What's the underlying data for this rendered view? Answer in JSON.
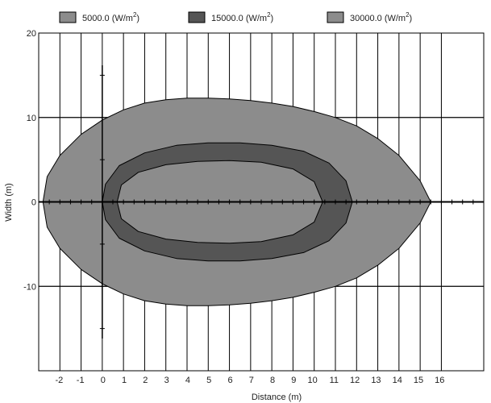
{
  "chart_data": {
    "type": "area",
    "xlabel": "Distance (m)",
    "ylabel": "Width (m)",
    "xlim": [
      -3,
      18
    ],
    "ylim": [
      -20,
      20
    ],
    "x_ticks": [
      -2,
      -1,
      0,
      1,
      2,
      3,
      4,
      5,
      6,
      7,
      8,
      9,
      10,
      11,
      12,
      13,
      14,
      15,
      16
    ],
    "x_tick_labels": [
      "-2",
      "-1",
      "0",
      "1",
      "2",
      "3",
      "4",
      "5",
      "6",
      "7",
      "8",
      "9",
      "10",
      "11",
      "12",
      "13",
      "14",
      "15",
      "16"
    ],
    "y_ticks": [
      -10,
      0,
      10,
      20
    ],
    "y_tick_labels": [
      "-10",
      "0",
      "10",
      "20"
    ],
    "grid": true,
    "legend_position": "top",
    "series": [
      {
        "name": "5000.0",
        "unit": "W/m",
        "unit_superscript": "2",
        "color": "#8c8c8c",
        "points": [
          [
            -2.8,
            0
          ],
          [
            -2.6,
            3
          ],
          [
            -2.0,
            5.5
          ],
          [
            -1.0,
            8
          ],
          [
            0,
            9.7
          ],
          [
            1,
            10.9
          ],
          [
            2,
            11.7
          ],
          [
            3,
            12.1
          ],
          [
            4,
            12.3
          ],
          [
            5,
            12.3
          ],
          [
            6,
            12.2
          ],
          [
            7,
            12.0
          ],
          [
            8,
            11.7
          ],
          [
            9,
            11.3
          ],
          [
            10,
            10.7
          ],
          [
            11,
            10.0
          ],
          [
            12,
            9.0
          ],
          [
            13,
            7.5
          ],
          [
            14,
            5.5
          ],
          [
            15,
            2.5
          ],
          [
            15.5,
            0
          ],
          [
            15,
            -2.5
          ],
          [
            14,
            -5.5
          ],
          [
            13,
            -7.5
          ],
          [
            12,
            -9.0
          ],
          [
            11,
            -10.0
          ],
          [
            10,
            -10.7
          ],
          [
            9,
            -11.3
          ],
          [
            8,
            -11.7
          ],
          [
            7,
            -12.0
          ],
          [
            6,
            -12.2
          ],
          [
            5,
            -12.3
          ],
          [
            4,
            -12.3
          ],
          [
            3,
            -12.1
          ],
          [
            2,
            -11.7
          ],
          [
            1,
            -10.9
          ],
          [
            0,
            -9.7
          ],
          [
            -1.0,
            -8
          ],
          [
            -2.0,
            -5.5
          ],
          [
            -2.6,
            -3
          ]
        ]
      },
      {
        "name": "15000.0",
        "unit": "W/m",
        "unit_superscript": "2",
        "color": "#555555",
        "points": [
          [
            0,
            0
          ],
          [
            0.15,
            2.1
          ],
          [
            0.8,
            4.3
          ],
          [
            2,
            5.8
          ],
          [
            3.5,
            6.7
          ],
          [
            5,
            7.0
          ],
          [
            6.5,
            7.0
          ],
          [
            8,
            6.7
          ],
          [
            9.5,
            6.0
          ],
          [
            10.7,
            4.6
          ],
          [
            11.5,
            2.5
          ],
          [
            11.8,
            0
          ],
          [
            11.5,
            -2.5
          ],
          [
            10.7,
            -4.6
          ],
          [
            9.5,
            -6.0
          ],
          [
            8,
            -6.7
          ],
          [
            6.5,
            -7.0
          ],
          [
            5,
            -7.0
          ],
          [
            3.5,
            -6.7
          ],
          [
            2,
            -5.8
          ],
          [
            0.8,
            -4.3
          ],
          [
            0.15,
            -2.1
          ]
        ]
      },
      {
        "name": "30000.0",
        "unit": "W/m",
        "unit_superscript": "2",
        "color": "#8c8c8c",
        "points": [
          [
            0.7,
            0
          ],
          [
            0.9,
            2.0
          ],
          [
            1.7,
            3.5
          ],
          [
            3,
            4.4
          ],
          [
            4.5,
            4.8
          ],
          [
            6,
            4.9
          ],
          [
            7.5,
            4.7
          ],
          [
            9,
            3.9
          ],
          [
            10,
            2.4
          ],
          [
            10.4,
            0
          ],
          [
            10,
            -2.4
          ],
          [
            9,
            -3.9
          ],
          [
            7.5,
            -4.7
          ],
          [
            6,
            -4.9
          ],
          [
            4.5,
            -4.8
          ],
          [
            3,
            -4.4
          ],
          [
            1.7,
            -3.5
          ],
          [
            0.9,
            -2.0
          ]
        ]
      }
    ]
  }
}
